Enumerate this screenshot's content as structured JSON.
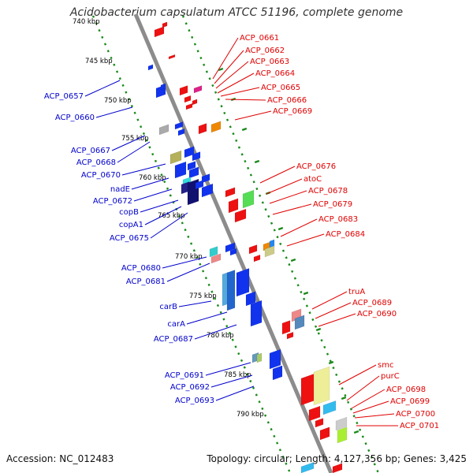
{
  "title": "Acidobacterium capsulatum ATCC 51196, complete genome",
  "footer": {
    "accession": "Accession: NC_012483",
    "topology": "Topology: circular; Length: 4,127,356 bp; Genes: 3,425"
  },
  "colors": {
    "forward_label": "#e00000",
    "reverse_label": "#0000cc",
    "backbone": "#8c8c8c",
    "ticks": "#1a8a1a"
  },
  "ticks": [
    "740 kbp",
    "745 kbp",
    "750 kbp",
    "755 kbp",
    "760 kbp",
    "765 kbp",
    "770 kbp",
    "775 kbp",
    "780 kbp",
    "785 kbp",
    "790 kbp"
  ],
  "labels_forward": [
    "ACP_0661",
    "ACP_0662",
    "ACP_0663",
    "ACP_0664",
    "ACP_0665",
    "ACP_0666",
    "ACP_0669",
    "ACP_0676",
    "atoC",
    "ACP_0678",
    "ACP_0679",
    "ACP_0683",
    "ACP_0684",
    "truA",
    "ACP_0689",
    "ACP_0690",
    "smc",
    "purC",
    "ACP_0698",
    "ACP_0699",
    "ACP_0700",
    "ACP_0701"
  ],
  "labels_reverse": [
    "ACP_0657",
    "ACP_0660",
    "ACP_0667",
    "ACP_0668",
    "ACP_0670",
    "nadE",
    "ACP_0672",
    "copB",
    "copA1",
    "ACP_0675",
    "ACP_0680",
    "ACP_0681",
    "carB",
    "carA",
    "ACP_0687",
    "ACP_0691",
    "ACP_0692",
    "ACP_0693"
  ]
}
